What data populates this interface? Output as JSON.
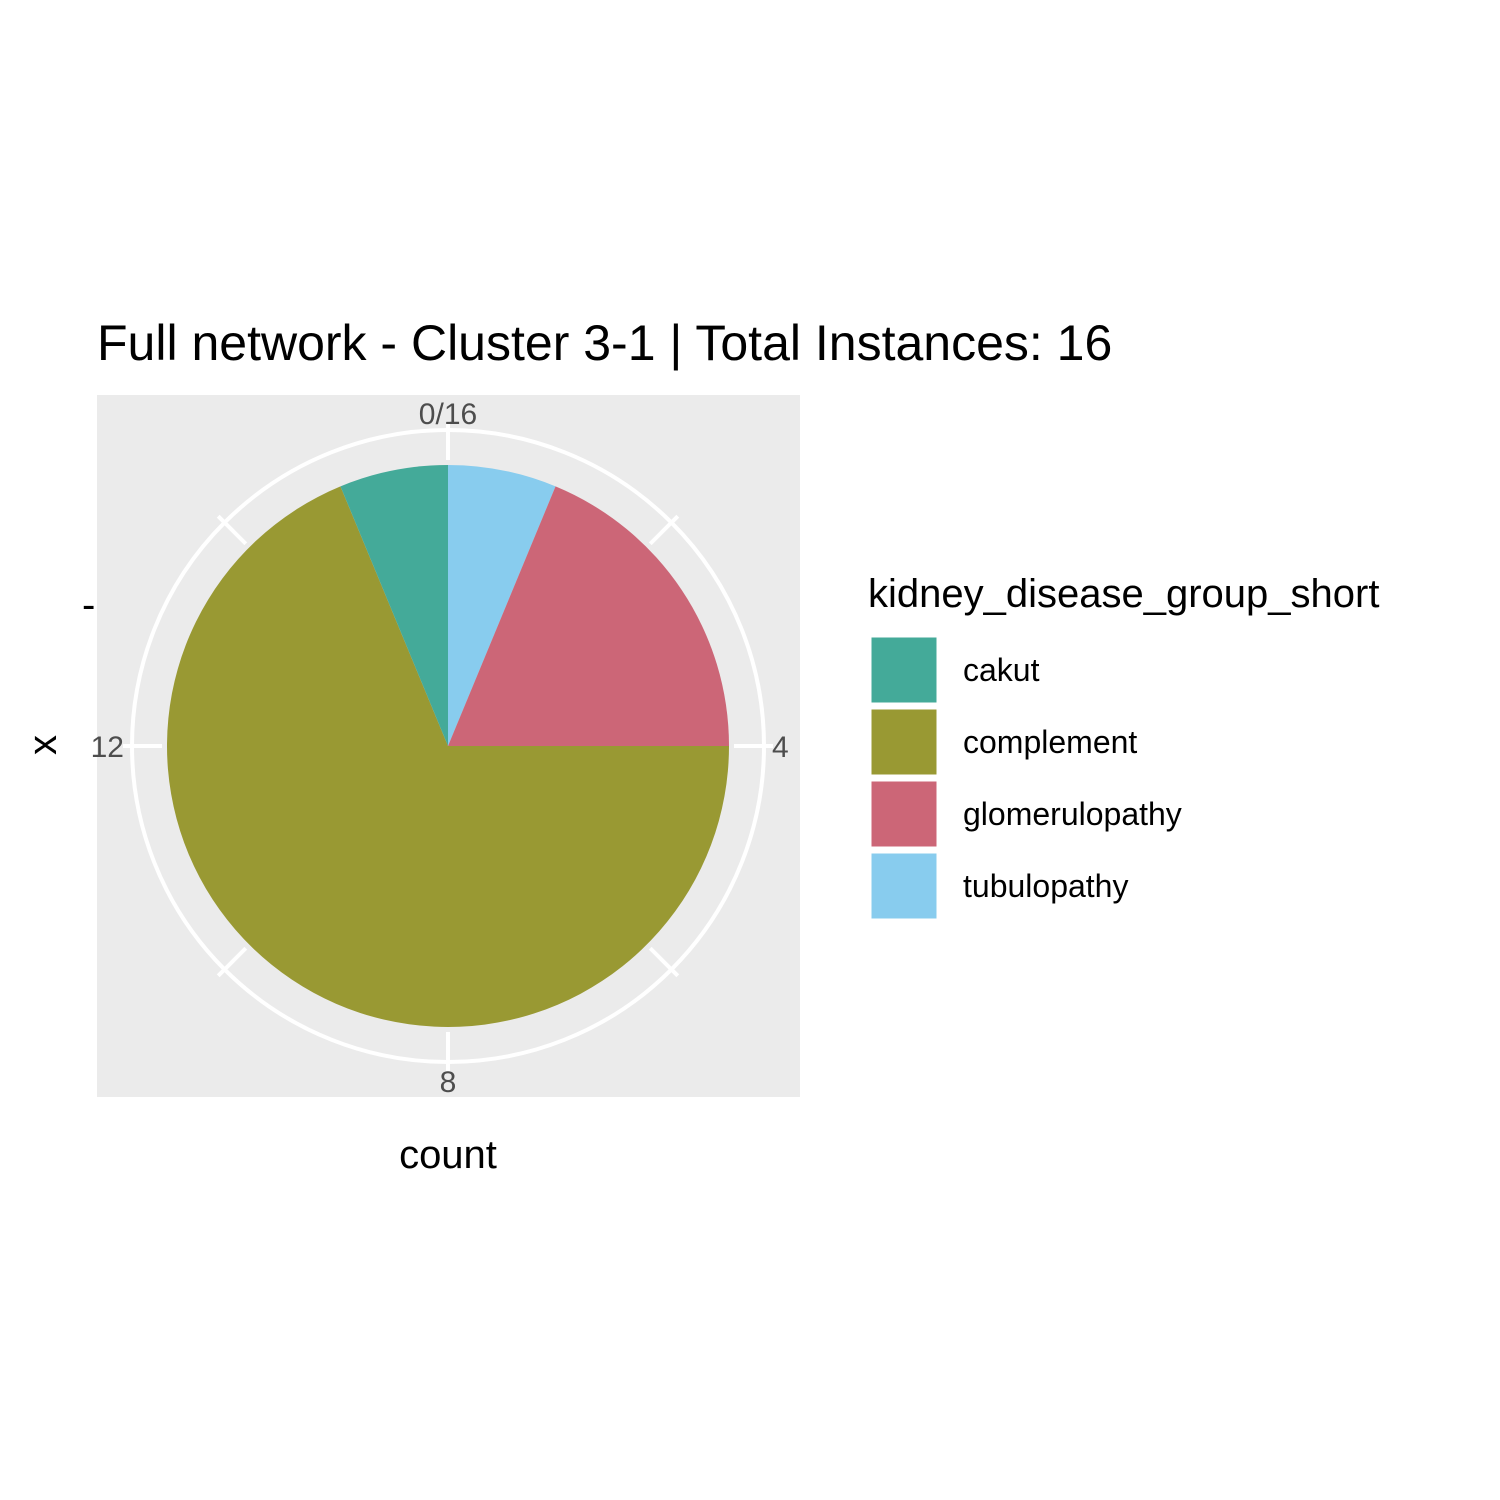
{
  "chart_data": {
    "type": "pie",
    "title": "Full network - Cluster 3-1 | Total Instances: 16",
    "xlabel": "count",
    "ylabel": "x",
    "y_tick_label": "-",
    "total": 16,
    "theta_ticks": [
      {
        "value": 0,
        "label": "0/16"
      },
      {
        "value": 4,
        "label": "4"
      },
      {
        "value": 8,
        "label": "8"
      },
      {
        "value": 12,
        "label": "12"
      }
    ],
    "legend_title": "kidney_disease_group_short",
    "legend_position": "right",
    "slices": [
      {
        "label": "tubulopathy",
        "value": 1,
        "color": "#88CCEE"
      },
      {
        "label": "glomerulopathy",
        "value": 3,
        "color": "#CC6677"
      },
      {
        "label": "complement",
        "value": 11,
        "color": "#999933"
      },
      {
        "label": "cakut",
        "value": 1,
        "color": "#44AA99"
      }
    ],
    "legend_order": [
      "cakut",
      "complement",
      "glomerulopathy",
      "tubulopathy"
    ],
    "panel_background": "#EBEBEB",
    "grid_color": "#FFFFFF"
  }
}
